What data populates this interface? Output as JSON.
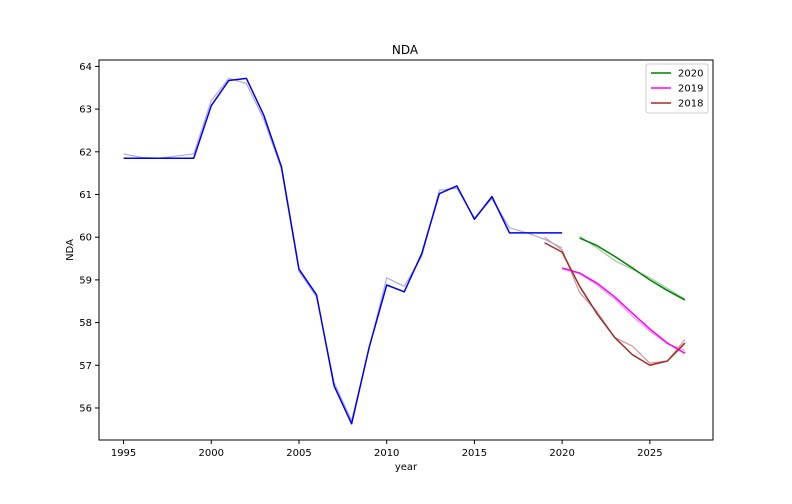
{
  "chart_data": {
    "type": "line",
    "title": "NDA",
    "xlabel": "year",
    "ylabel": "NDA",
    "xlim": [
      1993.6,
      2028.6
    ],
    "ylim": [
      55.25,
      64.15
    ],
    "xticks": [
      1995,
      2000,
      2005,
      2010,
      2015,
      2020,
      2025
    ],
    "yticks": [
      56,
      57,
      58,
      59,
      60,
      61,
      62,
      63,
      64
    ],
    "grid": false,
    "legend_position": "top-right",
    "series": [
      {
        "color": "#aaaaee",
        "role": "history-light",
        "x": [
          1995,
          1996,
          1997,
          1998,
          1999,
          2000,
          2001,
          2002,
          2003,
          2004,
          2005,
          2006,
          2007,
          2008,
          2009,
          2010,
          2011,
          2012,
          2013,
          2014,
          2015,
          2016,
          2017,
          2018,
          2019,
          2020
        ],
        "y": [
          61.95,
          61.87,
          61.85,
          61.9,
          61.95,
          63.2,
          63.72,
          63.6,
          62.75,
          61.6,
          59.2,
          58.6,
          56.6,
          55.7,
          57.4,
          59.05,
          58.85,
          59.55,
          61.1,
          61.15,
          60.45,
          60.9,
          60.22,
          60.1,
          59.95,
          59.75
        ]
      },
      {
        "color": "#0000ee",
        "role": "history",
        "x": [
          1995,
          1996,
          1997,
          1998,
          1999,
          2000,
          2001,
          2002,
          2003,
          2004,
          2005,
          2006,
          2007,
          2008,
          2009,
          2010,
          2011,
          2012,
          2013,
          2014,
          2015,
          2016,
          2017,
          2018,
          2019,
          2020
        ],
        "y": [
          61.85,
          61.85,
          61.85,
          61.85,
          61.85,
          63.08,
          63.67,
          63.72,
          62.85,
          61.65,
          59.25,
          58.65,
          56.52,
          55.63,
          57.42,
          58.88,
          58.72,
          59.62,
          61.02,
          61.2,
          60.42,
          60.95,
          60.1,
          60.1,
          60.1,
          60.1
        ]
      },
      {
        "color": "#99cc99",
        "role": "2020-light",
        "x": [
          2021,
          2022,
          2023,
          2024,
          2025,
          2026,
          2027
        ],
        "y": [
          60.02,
          59.75,
          59.45,
          59.25,
          59.05,
          58.8,
          58.55
        ]
      },
      {
        "color": "#ee99ee",
        "role": "2019-light",
        "x": [
          2020,
          2021,
          2022,
          2023,
          2024,
          2025,
          2026,
          2027
        ],
        "y": [
          59.25,
          59.15,
          58.88,
          58.55,
          58.15,
          57.8,
          57.5,
          57.35
        ]
      },
      {
        "color": "#cc9999",
        "role": "2018-light",
        "x": [
          2019,
          2020,
          2021,
          2022,
          2023,
          2024,
          2025,
          2026,
          2027
        ],
        "y": [
          60.0,
          59.7,
          58.7,
          58.25,
          57.65,
          57.45,
          57.05,
          57.1,
          57.6
        ]
      },
      {
        "name": "2020",
        "color": "#008000",
        "x": [
          2021,
          2022,
          2023,
          2024,
          2025,
          2026,
          2027
        ],
        "y": [
          59.98,
          59.8,
          59.55,
          59.28,
          59.0,
          58.75,
          58.53
        ]
      },
      {
        "name": "2019",
        "color": "#ff00ff",
        "x": [
          2020,
          2021,
          2022,
          2023,
          2024,
          2025,
          2026,
          2027
        ],
        "y": [
          59.28,
          59.16,
          58.92,
          58.6,
          58.22,
          57.85,
          57.52,
          57.28
        ]
      },
      {
        "name": "2018",
        "color": "#a52a2a",
        "x": [
          2019,
          2020,
          2021,
          2022,
          2023,
          2024,
          2025,
          2026,
          2027
        ],
        "y": [
          59.87,
          59.65,
          58.85,
          58.2,
          57.65,
          57.25,
          57.0,
          57.1,
          57.52
        ]
      }
    ],
    "legend": [
      {
        "label": "2020",
        "color": "#008000"
      },
      {
        "label": "2019",
        "color": "#ff00ff"
      },
      {
        "label": "2018",
        "color": "#a52a2a"
      }
    ]
  }
}
